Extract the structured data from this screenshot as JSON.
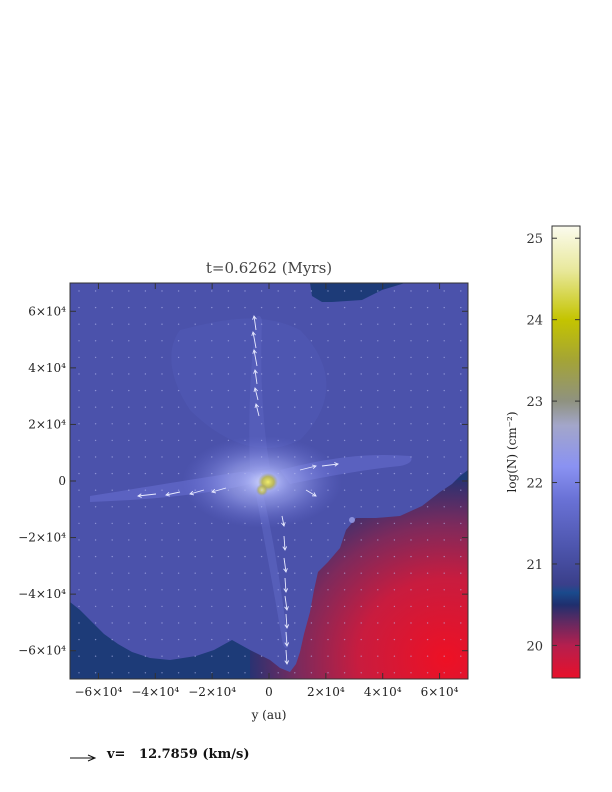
{
  "chart_data": {
    "type": "heatmap",
    "title": "t=0.6262 (Myrs)",
    "xlabel": "y (au)",
    "ylabel": "",
    "xlim": [
      -70000,
      70000
    ],
    "ylim": [
      -70000,
      70000
    ],
    "x_ticks": [
      {
        "value": -60000,
        "label": "−6×10⁴"
      },
      {
        "value": -40000,
        "label": "−4×10⁴"
      },
      {
        "value": -20000,
        "label": "−2×10⁴"
      },
      {
        "value": 0,
        "label": "0"
      },
      {
        "value": 20000,
        "label": "2×10⁴"
      },
      {
        "value": 40000,
        "label": "4×10⁴"
      },
      {
        "value": 60000,
        "label": "6×10⁴"
      }
    ],
    "y_ticks": [
      {
        "value": 60000,
        "label": "6×10⁴"
      },
      {
        "value": 40000,
        "label": "4×10⁴"
      },
      {
        "value": 20000,
        "label": "2×10⁴"
      },
      {
        "value": 0,
        "label": "0"
      },
      {
        "value": -20000,
        "label": "−2×10⁴"
      },
      {
        "value": -40000,
        "label": "−4×10⁴"
      },
      {
        "value": -60000,
        "label": "−6×10⁴"
      }
    ],
    "colorbar": {
      "label": "log(N) (cm⁻²)",
      "range": [
        19.6,
        25.15
      ],
      "ticks": [
        {
          "value": 20,
          "label": "20"
        },
        {
          "value": 21,
          "label": "21"
        },
        {
          "value": 22,
          "label": "22"
        },
        {
          "value": 23,
          "label": "23"
        },
        {
          "value": 24,
          "label": "24"
        },
        {
          "value": 25,
          "label": "25"
        }
      ],
      "colors": [
        {
          "value": 19.6,
          "color": "#e8102a"
        },
        {
          "value": 20.0,
          "color": "#b51f4e"
        },
        {
          "value": 20.3,
          "color": "#5e2a62"
        },
        {
          "value": 20.5,
          "color": "#1f2f6e"
        },
        {
          "value": 20.65,
          "color": "#1a4a8c"
        },
        {
          "value": 20.75,
          "color": "#3a3f8a"
        },
        {
          "value": 21.2,
          "color": "#4d55ad"
        },
        {
          "value": 21.8,
          "color": "#6a72d6"
        },
        {
          "value": 22.2,
          "color": "#8a92f2"
        },
        {
          "value": 22.7,
          "color": "#a3a6ca"
        },
        {
          "value": 23.0,
          "color": "#8f9280"
        },
        {
          "value": 23.5,
          "color": "#a4a436"
        },
        {
          "value": 24.0,
          "color": "#c4c400"
        },
        {
          "value": 24.6,
          "color": "#e8e89a"
        },
        {
          "value": 25.15,
          "color": "#fbfbee"
        }
      ]
    },
    "velocity_legend": {
      "label": "v=   12.7859 (km/s)"
    }
  }
}
